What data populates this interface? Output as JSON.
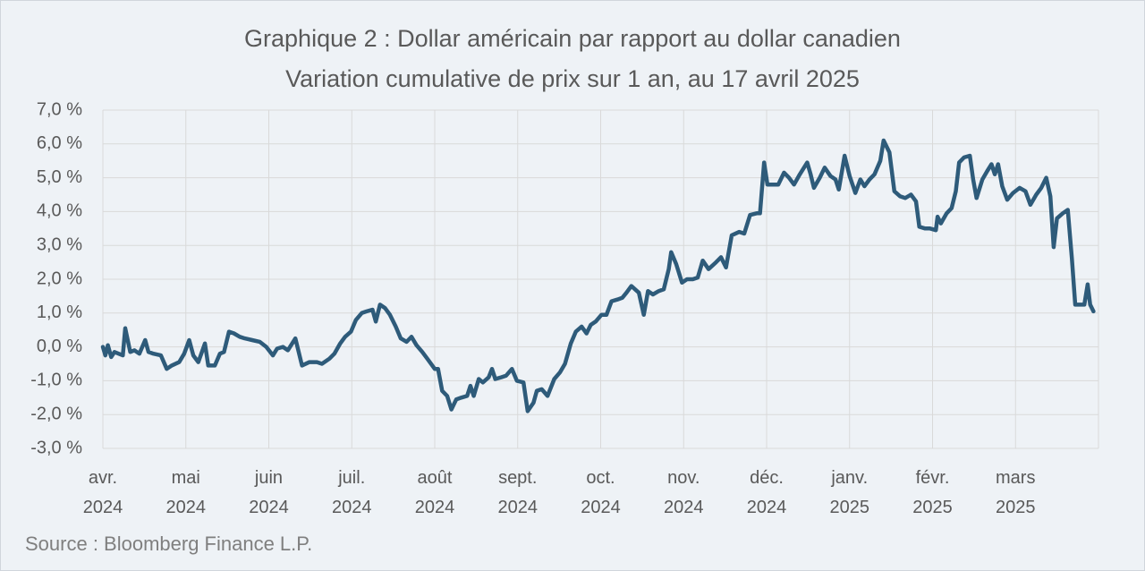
{
  "chart_data": {
    "type": "line",
    "title": "Graphique 2 : Dollar américain par rapport au dollar canadien",
    "subtitle": "Variation cumulative de prix sur 1 an, au 17 avril 2025",
    "source": "Source : Bloomberg Finance L.P.",
    "xlim": [
      0,
      12
    ],
    "xticks": [
      {
        "value": 0,
        "label": "avr. 2024"
      },
      {
        "value": 1,
        "label": "mai 2024"
      },
      {
        "value": 2,
        "label": "juin 2024"
      },
      {
        "value": 3,
        "label": "juil. 2024"
      },
      {
        "value": 4,
        "label": "août 2024"
      },
      {
        "value": 5,
        "label": "sept. 2024"
      },
      {
        "value": 6,
        "label": "oct. 2024"
      },
      {
        "value": 7,
        "label": "nov. 2024"
      },
      {
        "value": 8,
        "label": "déc. 2024"
      },
      {
        "value": 9,
        "label": "janv. 2025"
      },
      {
        "value": 10,
        "label": "févr. 2025"
      },
      {
        "value": 11,
        "label": "mars 2025"
      }
    ],
    "ylim": [
      -3,
      7
    ],
    "yticks": [
      {
        "value": -3,
        "label": "-3,0 %"
      },
      {
        "value": -2,
        "label": "-2,0 %"
      },
      {
        "value": -1,
        "label": "-1,0 %"
      },
      {
        "value": 0,
        "label": "0,0 %"
      },
      {
        "value": 1,
        "label": "1,0 %"
      },
      {
        "value": 2,
        "label": "2,0 %"
      },
      {
        "value": 3,
        "label": "3,0 %"
      },
      {
        "value": 4,
        "label": "4,0 %"
      },
      {
        "value": 5,
        "label": "5,0 %"
      },
      {
        "value": 6,
        "label": "6,0 %"
      },
      {
        "value": 7,
        "label": "7,0 %"
      }
    ],
    "grid": true,
    "series": [
      {
        "color": "#2e5b7a",
        "x": [
          0,
          0.03,
          0.06,
          0.1,
          0.14,
          0.19,
          0.24,
          0.27,
          0.33,
          0.38,
          0.44,
          0.51,
          0.55,
          0.61,
          0.7,
          0.77,
          0.83,
          0.92,
          0.98,
          1.04,
          1.09,
          1.15,
          1.23,
          1.27,
          1.35,
          1.41,
          1.46,
          1.52,
          1.58,
          1.65,
          1.71,
          1.8,
          1.89,
          1.97,
          2.05,
          2.1,
          2.17,
          2.23,
          2.32,
          2.4,
          2.49,
          2.58,
          2.64,
          2.73,
          2.79,
          2.86,
          2.92,
          2.99,
          3.05,
          3.12,
          3.18,
          3.25,
          3.29,
          3.34,
          3.4,
          3.46,
          3.53,
          3.59,
          3.66,
          3.72,
          3.78,
          3.85,
          3.91,
          4.0,
          4.04,
          4.09,
          4.15,
          4.2,
          4.26,
          4.32,
          4.39,
          4.43,
          4.47,
          4.53,
          4.58,
          4.65,
          4.69,
          4.73,
          4.8,
          4.86,
          4.93,
          4.99,
          5.07,
          5.12,
          5.19,
          5.23,
          5.29,
          5.36,
          5.44,
          5.51,
          5.57,
          5.64,
          5.7,
          5.77,
          5.83,
          5.88,
          5.94,
          6.01,
          6.07,
          6.13,
          6.2,
          6.26,
          6.31,
          6.37,
          6.46,
          6.52,
          6.57,
          6.63,
          6.7,
          6.76,
          6.82,
          6.85,
          6.91,
          6.98,
          7.04,
          7.11,
          7.17,
          7.23,
          7.3,
          7.39,
          7.45,
          7.51,
          7.58,
          7.67,
          7.73,
          7.8,
          7.88,
          7.92,
          7.97,
          8.01,
          8.08,
          8.14,
          8.21,
          8.27,
          8.33,
          8.4,
          8.49,
          8.53,
          8.57,
          8.64,
          8.7,
          8.77,
          8.83,
          8.87,
          8.94,
          9.0,
          9.07,
          9.13,
          9.18,
          9.24,
          9.3,
          9.37,
          9.41,
          9.48,
          9.54,
          9.61,
          9.67,
          9.74,
          9.8,
          9.84,
          9.91,
          9.97,
          10.04,
          10.06,
          10.1,
          10.17,
          10.23,
          10.28,
          10.32,
          10.38,
          10.45,
          10.49,
          10.53,
          10.6,
          10.66,
          10.71,
          10.75,
          10.79,
          10.84,
          10.9,
          10.97,
          11.05,
          11.12,
          11.18,
          11.25,
          11.31,
          11.37,
          11.42,
          11.46,
          11.5,
          11.57,
          11.63,
          11.68,
          11.72,
          11.78,
          11.83,
          11.87,
          11.9,
          11.94
        ],
        "values": [
          0,
          -0.25,
          0.05,
          -0.3,
          -0.15,
          -0.2,
          -0.25,
          0.55,
          -0.15,
          -0.1,
          -0.2,
          0.2,
          -0.15,
          -0.2,
          -0.25,
          -0.65,
          -0.55,
          -0.45,
          -0.2,
          0.2,
          -0.25,
          -0.45,
          0.1,
          -0.55,
          -0.55,
          -0.2,
          -0.15,
          0.45,
          0.4,
          0.3,
          0.25,
          0.2,
          0.15,
          0,
          -0.25,
          -0.05,
          0,
          -0.1,
          0.25,
          -0.55,
          -0.45,
          -0.45,
          -0.5,
          -0.35,
          -0.2,
          0.1,
          0.3,
          0.45,
          0.8,
          1.0,
          1.05,
          1.1,
          0.75,
          1.25,
          1.15,
          0.95,
          0.6,
          0.25,
          0.15,
          0.3,
          0.05,
          -0.15,
          -0.35,
          -0.65,
          -0.65,
          -1.3,
          -1.45,
          -1.85,
          -1.55,
          -1.5,
          -1.45,
          -1.15,
          -1.45,
          -0.95,
          -1.05,
          -0.9,
          -0.65,
          -0.95,
          -0.9,
          -0.85,
          -0.65,
          -1.0,
          -1.05,
          -1.9,
          -1.65,
          -1.3,
          -1.25,
          -1.45,
          -0.95,
          -0.75,
          -0.5,
          0.1,
          0.45,
          0.6,
          0.4,
          0.65,
          0.75,
          0.95,
          0.95,
          1.35,
          1.4,
          1.45,
          1.6,
          1.8,
          1.6,
          0.95,
          1.65,
          1.55,
          1.65,
          1.7,
          2.3,
          2.8,
          2.45,
          1.9,
          2.0,
          2.0,
          2.05,
          2.55,
          2.3,
          2.5,
          2.65,
          2.35,
          3.3,
          3.4,
          3.35,
          3.9,
          3.95,
          3.95,
          5.45,
          4.8,
          4.8,
          4.8,
          5.15,
          5.0,
          4.8,
          5.1,
          5.45,
          5.1,
          4.7,
          5.0,
          5.3,
          5.05,
          4.95,
          4.65,
          5.65,
          5.05,
          4.55,
          4.95,
          4.75,
          4.95,
          5.1,
          5.5,
          6.1,
          5.75,
          4.6,
          4.45,
          4.4,
          4.5,
          4.3,
          3.55,
          3.5,
          3.5,
          3.45,
          3.85,
          3.65,
          3.95,
          4.1,
          4.6,
          5.45,
          5.6,
          5.65,
          4.95,
          4.4,
          4.95,
          5.2,
          5.4,
          5.1,
          5.4,
          4.75,
          4.35,
          4.55,
          4.7,
          4.6,
          4.2,
          4.5,
          4.7,
          5.0,
          4.45,
          2.95,
          3.8,
          3.95,
          4.05,
          2.6,
          1.25,
          1.25,
          1.25,
          1.85,
          1.25,
          1.05
        ]
      }
    ]
  }
}
